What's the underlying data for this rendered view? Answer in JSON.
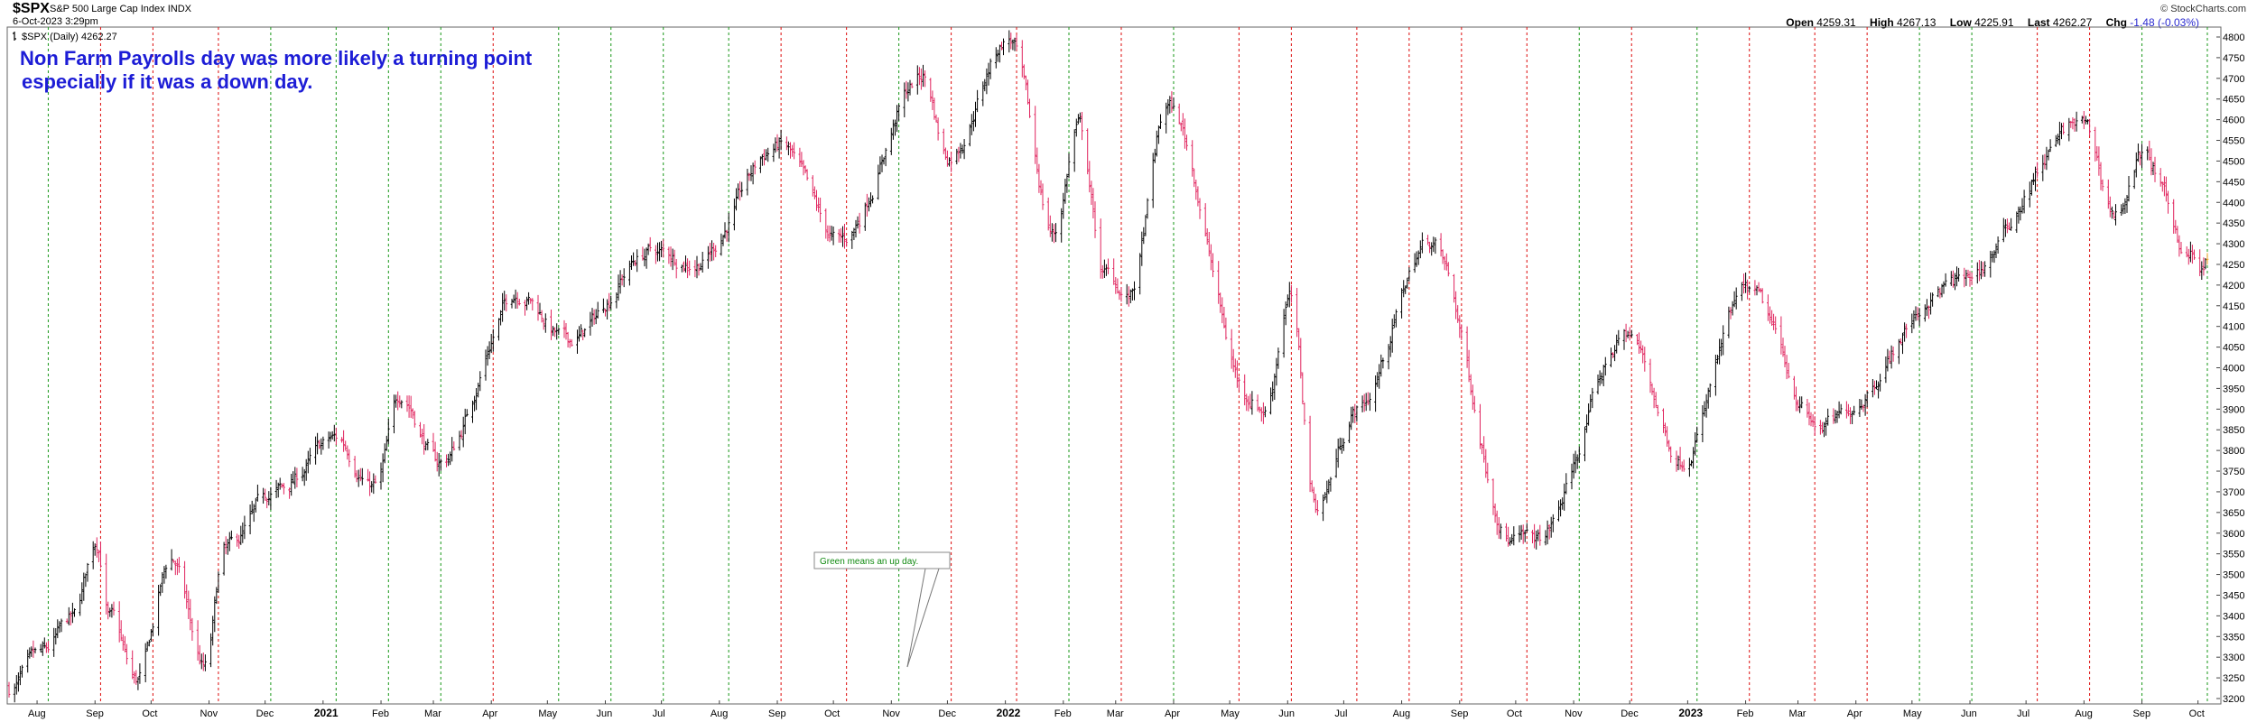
{
  "header": {
    "symbol": "$SPX",
    "name": "S&P 500 Large Cap Index",
    "exchange": "INDX",
    "date": "6-Oct-2023 3:29pm",
    "brand": "© StockCharts.com",
    "open_label": "Open",
    "open": "4259.31",
    "high_label": "High",
    "high": "4267.13",
    "low_label": "Low",
    "low": "4225.91",
    "last_label": "Last",
    "last": "4262.27",
    "chg_label": "Chg",
    "chg": "-1.48 (-0.03%)",
    "legend": "$SPX (Daily) 4262.27"
  },
  "colors": {
    "up_bar": "#000000",
    "down_bar": "#e0245e",
    "green_line": "#2ca02c",
    "red_line": "#e02020",
    "annotation_main": "#1d1dd6",
    "annotation_small": "#108a10",
    "last_bar": "#f5a623"
  },
  "chart_data": {
    "type": "bar",
    "subtype": "ohlc",
    "ylim": [
      3200,
      4800
    ],
    "y_ticks": [
      3200,
      3250,
      3300,
      3350,
      3400,
      3450,
      3500,
      3550,
      3600,
      3650,
      3700,
      3750,
      3800,
      3850,
      3900,
      3950,
      4000,
      4050,
      4100,
      4150,
      4200,
      4250,
      4300,
      4350,
      4400,
      4450,
      4500,
      4550,
      4600,
      4650,
      4700,
      4750,
      4800
    ],
    "x_labels": [
      "Aug",
      "Sep",
      "Oct",
      "Nov",
      "Dec",
      "2021",
      "Feb",
      "Mar",
      "Apr",
      "May",
      "Jun",
      "Jul",
      "Aug",
      "Sep",
      "Oct",
      "Nov",
      "Dec",
      "2022",
      "Feb",
      "Mar",
      "Apr",
      "May",
      "Jun",
      "Jul",
      "Aug",
      "Sep",
      "Oct",
      "Nov",
      "Dec",
      "2023",
      "Feb",
      "Mar",
      "Apr",
      "May",
      "Jun",
      "Jul",
      "Aug",
      "Sep",
      "Oct"
    ],
    "year_labels": [
      "2021",
      "2022",
      "2023"
    ],
    "close_anchors": [
      {
        "date": "2020-07-17",
        "close": 3225
      },
      {
        "date": "2020-08-03",
        "close": 3295
      },
      {
        "date": "2020-08-20",
        "close": 3385
      },
      {
        "date": "2020-09-02",
        "close": 3580
      },
      {
        "date": "2020-09-09",
        "close": 3398
      },
      {
        "date": "2020-09-23",
        "close": 3237
      },
      {
        "date": "2020-10-12",
        "close": 3535
      },
      {
        "date": "2020-10-30",
        "close": 3270
      },
      {
        "date": "2020-11-09",
        "close": 3550
      },
      {
        "date": "2020-12-08",
        "close": 3702
      },
      {
        "date": "2021-01-08",
        "close": 3824
      },
      {
        "date": "2021-01-29",
        "close": 3714
      },
      {
        "date": "2021-02-12",
        "close": 3934
      },
      {
        "date": "2021-03-04",
        "close": 3768
      },
      {
        "date": "2021-04-16",
        "close": 4185
      },
      {
        "date": "2021-05-12",
        "close": 4063
      },
      {
        "date": "2021-06-25",
        "close": 4280
      },
      {
        "date": "2021-07-19",
        "close": 4258
      },
      {
        "date": "2021-09-02",
        "close": 4537
      },
      {
        "date": "2021-10-04",
        "close": 4300
      },
      {
        "date": "2021-11-18",
        "close": 4704
      },
      {
        "date": "2021-12-01",
        "close": 4513
      },
      {
        "date": "2022-01-03",
        "close": 4796
      },
      {
        "date": "2022-01-27",
        "close": 4326
      },
      {
        "date": "2022-02-09",
        "close": 4587
      },
      {
        "date": "2022-02-23",
        "close": 4225
      },
      {
        "date": "2022-03-08",
        "close": 4170
      },
      {
        "date": "2022-03-29",
        "close": 4631
      },
      {
        "date": "2022-05-12",
        "close": 3930
      },
      {
        "date": "2022-05-20",
        "close": 3901
      },
      {
        "date": "2022-06-02",
        "close": 4176
      },
      {
        "date": "2022-06-16",
        "close": 3666
      },
      {
        "date": "2022-07-08",
        "close": 3899
      },
      {
        "date": "2022-08-16",
        "close": 4305
      },
      {
        "date": "2022-09-30",
        "close": 3585
      },
      {
        "date": "2022-10-12",
        "close": 3577
      },
      {
        "date": "2022-11-30",
        "close": 4080
      },
      {
        "date": "2022-12-28",
        "close": 3783
      },
      {
        "date": "2023-02-02",
        "close": 4179
      },
      {
        "date": "2023-03-13",
        "close": 3855
      },
      {
        "date": "2023-05-26",
        "close": 4205
      },
      {
        "date": "2023-07-31",
        "close": 4589
      },
      {
        "date": "2023-08-18",
        "close": 4370
      },
      {
        "date": "2023-09-01",
        "close": 4515
      },
      {
        "date": "2023-09-27",
        "close": 4275
      },
      {
        "date": "2023-10-03",
        "close": 4229
      },
      {
        "date": "2023-10-06",
        "close": 4262
      }
    ],
    "nfp_dates": [
      {
        "date": "2020-08-07",
        "up": true
      },
      {
        "date": "2020-09-04",
        "up": false
      },
      {
        "date": "2020-10-02",
        "up": false
      },
      {
        "date": "2020-11-06",
        "up": false
      },
      {
        "date": "2020-12-04",
        "up": true
      },
      {
        "date": "2021-01-08",
        "up": true
      },
      {
        "date": "2021-02-05",
        "up": true
      },
      {
        "date": "2021-03-05",
        "up": true
      },
      {
        "date": "2021-04-02",
        "up": false
      },
      {
        "date": "2021-05-07",
        "up": true
      },
      {
        "date": "2021-06-04",
        "up": true
      },
      {
        "date": "2021-07-02",
        "up": true
      },
      {
        "date": "2021-08-06",
        "up": true
      },
      {
        "date": "2021-09-03",
        "up": false
      },
      {
        "date": "2021-10-08",
        "up": false
      },
      {
        "date": "2021-11-05",
        "up": true
      },
      {
        "date": "2021-12-03",
        "up": false
      },
      {
        "date": "2022-01-07",
        "up": false
      },
      {
        "date": "2022-02-04",
        "up": true
      },
      {
        "date": "2022-03-04",
        "up": false
      },
      {
        "date": "2022-04-01",
        "up": true
      },
      {
        "date": "2022-05-06",
        "up": false
      },
      {
        "date": "2022-06-03",
        "up": false
      },
      {
        "date": "2022-07-08",
        "up": false
      },
      {
        "date": "2022-08-05",
        "up": false
      },
      {
        "date": "2022-09-02",
        "up": false
      },
      {
        "date": "2022-10-07",
        "up": false
      },
      {
        "date": "2022-11-04",
        "up": true
      },
      {
        "date": "2022-12-02",
        "up": false
      },
      {
        "date": "2023-01-06",
        "up": true
      },
      {
        "date": "2023-02-03",
        "up": false
      },
      {
        "date": "2023-03-10",
        "up": false
      },
      {
        "date": "2023-04-07",
        "up": false
      },
      {
        "date": "2023-05-05",
        "up": true
      },
      {
        "date": "2023-06-02",
        "up": true
      },
      {
        "date": "2023-07-07",
        "up": false
      },
      {
        "date": "2023-08-04",
        "up": false
      },
      {
        "date": "2023-09-01",
        "up": true
      },
      {
        "date": "2023-10-06",
        "up": true
      }
    ],
    "annotation_main": [
      "Non Farm Payrolls day was more likely a turning point",
      "especially if it was a down day."
    ],
    "annotation_small": "Green means an up day."
  }
}
